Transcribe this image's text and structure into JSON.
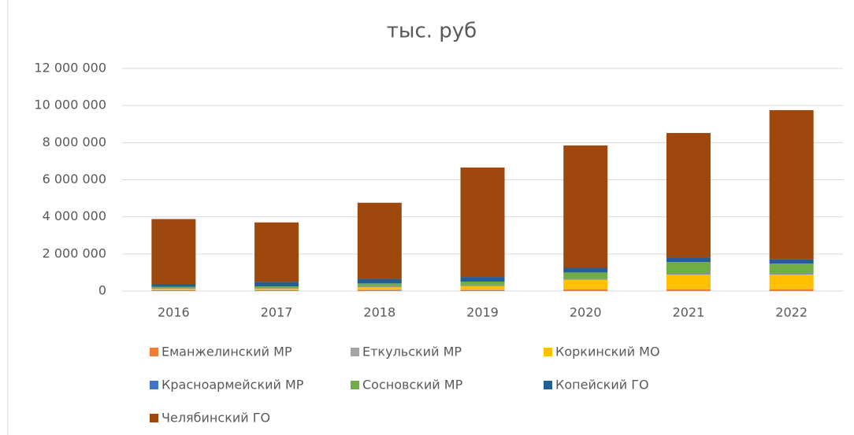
{
  "chart_data": {
    "type": "stacked_bar",
    "title": "тыс. руб",
    "categories": [
      "2016",
      "2017",
      "2018",
      "2019",
      "2020",
      "2021",
      "2022"
    ],
    "series": [
      {
        "name": "Еманжелинский  МР",
        "color": "#ed7d31",
        "values": [
          50000,
          50000,
          60000,
          60000,
          100000,
          100000,
          100000
        ]
      },
      {
        "name": "Еткульский МР",
        "color": "#a5a5a5",
        "values": [
          20000,
          20000,
          20000,
          20000,
          20000,
          20000,
          20000
        ]
      },
      {
        "name": "Коркинский МО",
        "color": "#ffc000",
        "values": [
          80000,
          80000,
          150000,
          200000,
          500000,
          780000,
          780000
        ]
      },
      {
        "name": "Красноармейский МР",
        "color": "#4472c4",
        "values": [
          20000,
          20000,
          30000,
          30000,
          30000,
          30000,
          30000
        ]
      },
      {
        "name": "Сосновский МР",
        "color": "#70ad47",
        "values": [
          60000,
          80000,
          150000,
          200000,
          350000,
          640000,
          550000
        ]
      },
      {
        "name": "Копейский ГО",
        "color": "#255e91",
        "values": [
          150000,
          250000,
          250000,
          250000,
          250000,
          250000,
          220000
        ]
      },
      {
        "name": "Челябинский ГО",
        "color": "#9e480e",
        "values": [
          3500000,
          3200000,
          4100000,
          5900000,
          6600000,
          6700000,
          8050000
        ]
      }
    ],
    "ylim": [
      0,
      12000000
    ],
    "yticks": [
      0,
      {
        "value": 2000000,
        "label": "2 000 000"
      },
      {
        "value": 4000000,
        "label": "4 000 000"
      },
      {
        "value": 6000000,
        "label": "6 000 000"
      },
      {
        "value": 8000000,
        "label": "8 000 000"
      },
      {
        "value": 10000000,
        "label": "10 000 000"
      },
      {
        "value": 12000000,
        "label": "12 000 000"
      }
    ],
    "grid": true
  }
}
